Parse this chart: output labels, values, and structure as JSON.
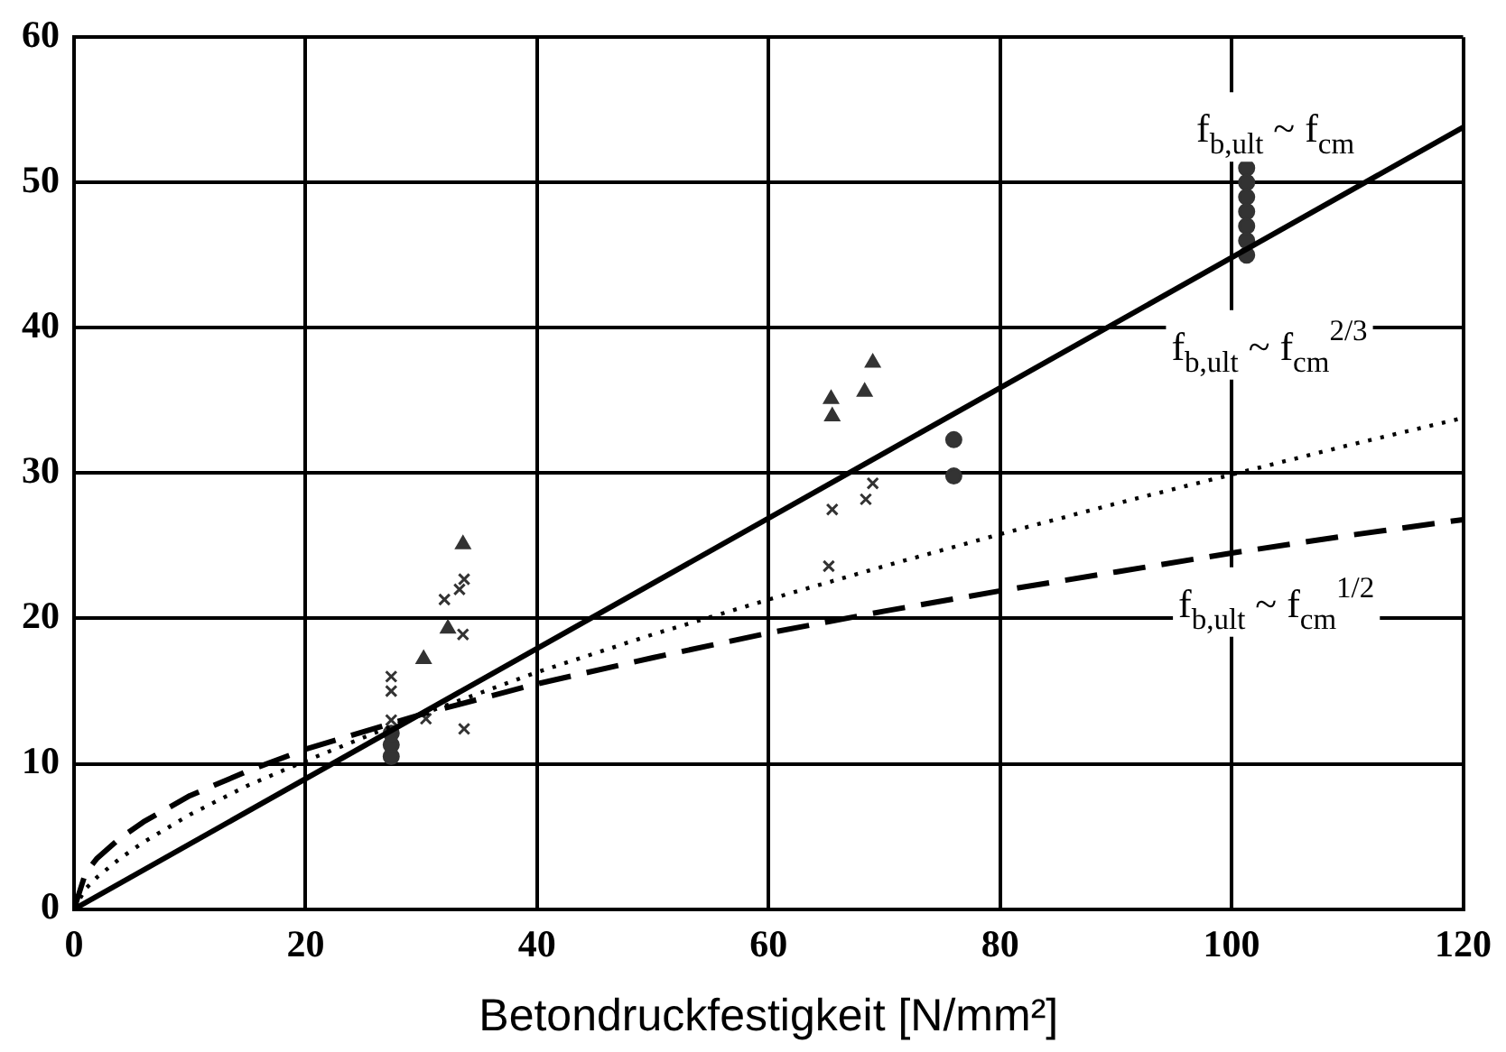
{
  "chart_data": {
    "type": "line",
    "xlabel": "Betondruckfestigkeit [N/mm²]",
    "xlim": [
      0,
      120
    ],
    "xticks": [
      0,
      20,
      40,
      60,
      80,
      100,
      120
    ],
    "ylim": [
      0,
      60
    ],
    "yticks": [
      0,
      10,
      20,
      30,
      40,
      50,
      60
    ],
    "grid": true,
    "legend": false,
    "series": [
      {
        "color": "#000000",
        "line_style": "solid",
        "marker": "none",
        "x": [
          0,
          120
        ],
        "values": [
          0,
          53.8
        ]
      },
      {
        "color": "#000000",
        "line_style": "dotted",
        "marker": "none",
        "x": [
          0,
          1,
          2,
          4,
          6,
          10,
          15,
          20,
          30,
          40,
          50,
          60,
          70,
          80,
          90,
          100,
          110,
          120
        ],
        "values": [
          0,
          1.4,
          2.2,
          3.5,
          4.6,
          6.5,
          8.5,
          10.2,
          13.4,
          16.3,
          18.9,
          21.3,
          23.6,
          25.8,
          27.9,
          29.9,
          31.9,
          33.8
        ]
      },
      {
        "color": "#000000",
        "line_style": "dashed",
        "marker": "none",
        "x": [
          0,
          1,
          2,
          4,
          6,
          10,
          15,
          20,
          30,
          40,
          50,
          60,
          70,
          80,
          90,
          100,
          110,
          120
        ],
        "values": [
          0,
          2.5,
          3.5,
          4.9,
          6.0,
          7.8,
          9.5,
          11.0,
          13.4,
          15.5,
          17.3,
          19.0,
          20.5,
          21.9,
          23.2,
          24.5,
          25.7,
          26.8
        ]
      },
      {
        "type": "scatter",
        "color": "#333333",
        "marker": "triangle",
        "x": [
          33.6,
          32.3,
          30.2,
          65.4,
          65.5,
          68.3,
          69
        ],
        "values": [
          25.1,
          19.3,
          17.2,
          35.1,
          33.9,
          35.6,
          37.6
        ]
      },
      {
        "type": "scatter",
        "color": "#333333",
        "marker": "cross",
        "x": [
          32,
          33.3,
          33.7,
          33.6,
          33.7,
          30.4,
          27.4,
          27.4,
          27.4,
          65.5,
          68.4,
          69,
          65.2
        ],
        "values": [
          21.3,
          22,
          22.7,
          18.9,
          12.4,
          13.1,
          13,
          15,
          16,
          27.5,
          28.2,
          29.3,
          23.6
        ]
      },
      {
        "type": "scatter",
        "color": "#333333",
        "marker": "circle",
        "x": [
          27.4,
          27.4,
          27.4,
          76,
          76,
          101.3,
          101.3,
          101.3,
          101.3,
          101.3,
          101.3,
          101.3
        ],
        "values": [
          10.5,
          11.3,
          12.1,
          32.3,
          29.8,
          51,
          50,
          49,
          48,
          47,
          46,
          45
        ]
      }
    ],
    "annotations": [
      "f$_{b,ult}$ ~ f$_{cm}$",
      "f$_{b,ult}$ ~ f$_{cm}$$^{2/3}$",
      "f$_{b,ult}$ ~ f$_{cm}$$^{1/2}$"
    ]
  }
}
